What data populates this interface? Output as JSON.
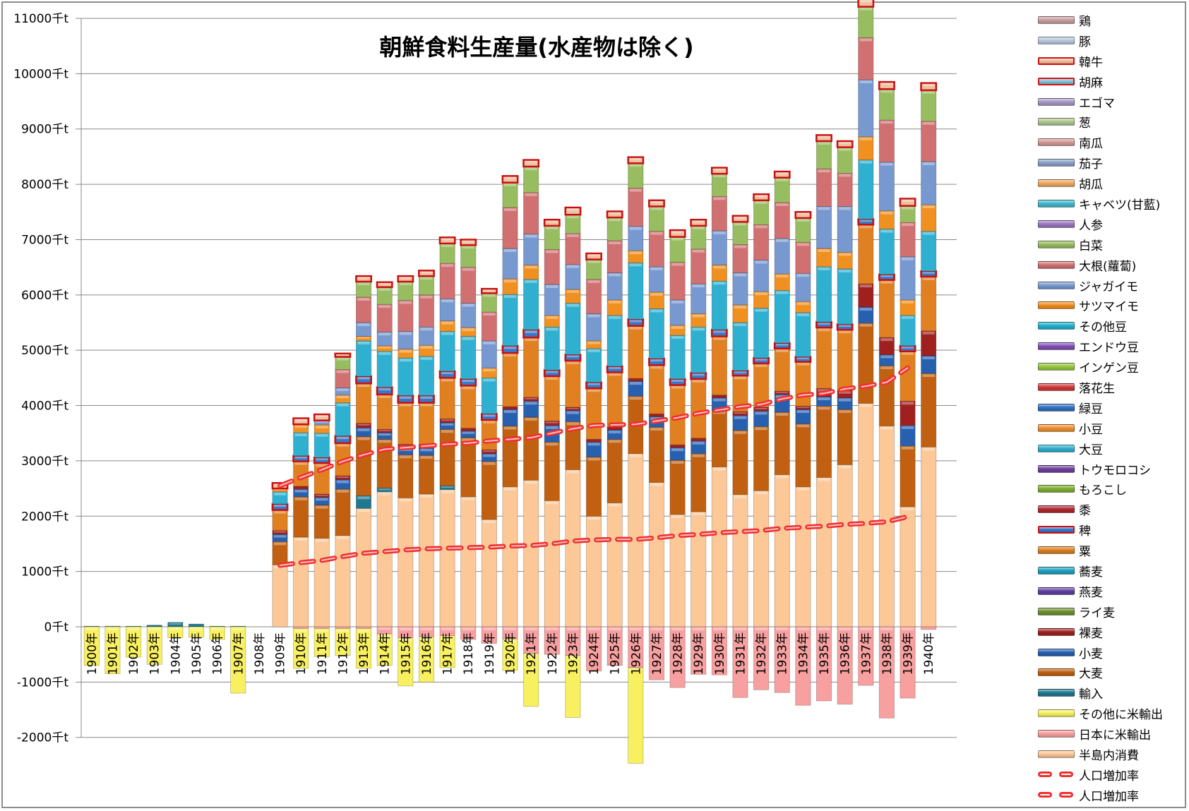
{
  "chart_data": {
    "type": "bar",
    "stacked": true,
    "title": "朝鮮食料生産量(水産物は除く)",
    "y_unit_suffix": "千t",
    "ylim": [
      -2000,
      11000
    ],
    "y_ticks": [
      11000,
      10000,
      9000,
      8000,
      7000,
      6000,
      5000,
      4000,
      3000,
      2000,
      1000,
      0,
      -1000,
      -2000
    ],
    "y_tick_labels": [
      "11000千t",
      "10000千t",
      "9000千t",
      "8000千t",
      "7000千t",
      "6000千t",
      "5000千t",
      "4000千t",
      "3000千t",
      "2000千t",
      "1000千t",
      "0千t",
      "-1000千t",
      "-2000千t"
    ],
    "grid": true,
    "legend_position": "right",
    "categories": [
      "1900年",
      "1901年",
      "1902年",
      "1903年",
      "1904年",
      "1905年",
      "1906年",
      "1907年",
      "1908年",
      "1909年",
      "1910年",
      "1911年",
      "1912年",
      "1913年",
      "1914年",
      "1915年",
      "1916年",
      "1917年",
      "1918年",
      "1919年",
      "1920年",
      "1921年",
      "1922年",
      "1923年",
      "1924年",
      "1925年",
      "1926年",
      "1927年",
      "1928年",
      "1929年",
      "1930年",
      "1931年",
      "1932年",
      "1933年",
      "1934年",
      "1935年",
      "1936年",
      "1937年",
      "1938年",
      "1939年",
      "1940年"
    ],
    "legend": [
      {
        "name": "鶏",
        "color": "#c9a0a0"
      },
      {
        "name": "豚",
        "color": "#b8c8e0"
      },
      {
        "name": "韓牛",
        "color": "#f0c0a0",
        "outline": "red"
      },
      {
        "name": "胡麻",
        "color": "#7fc4d8",
        "outline": "red"
      },
      {
        "name": "エゴマ",
        "color": "#a898c8"
      },
      {
        "name": "葱",
        "color": "#b0c890"
      },
      {
        "name": "南瓜",
        "color": "#d89898"
      },
      {
        "name": "茄子",
        "color": "#8aa0c8"
      },
      {
        "name": "胡瓜",
        "color": "#f0a860"
      },
      {
        "name": "キャベツ(甘藍)",
        "color": "#40b8d0"
      },
      {
        "name": "人参",
        "color": "#9878c0"
      },
      {
        "name": "白菜",
        "color": "#98bc60"
      },
      {
        "name": "大根(蘿蔔)",
        "color": "#d07070"
      },
      {
        "name": "ジャガイモ",
        "color": "#7898d0"
      },
      {
        "name": "サツマイモ",
        "color": "#f09020"
      },
      {
        "name": "その他豆",
        "color": "#20b0d0"
      },
      {
        "name": "エンドウ豆",
        "color": "#8050b8"
      },
      {
        "name": "インゲン豆",
        "color": "#98c840"
      },
      {
        "name": "落花生",
        "color": "#d03838"
      },
      {
        "name": "緑豆",
        "color": "#3070c0"
      },
      {
        "name": "小豆",
        "color": "#f09030"
      },
      {
        "name": "大豆",
        "color": "#30b0d0"
      },
      {
        "name": "トウモロコシ",
        "color": "#7040a0"
      },
      {
        "name": "もろこし",
        "color": "#80b030"
      },
      {
        "name": "黍",
        "color": "#b02830"
      },
      {
        "name": "稗",
        "color": "#3878c8",
        "outline": "red"
      },
      {
        "name": "粟",
        "color": "#e08020"
      },
      {
        "name": "蕎麦",
        "color": "#20a0c0"
      },
      {
        "name": "燕麦",
        "color": "#6040a0"
      },
      {
        "name": "ライ麦",
        "color": "#709030"
      },
      {
        "name": "裸麦",
        "color": "#a02020"
      },
      {
        "name": "小麦",
        "color": "#2860b0"
      },
      {
        "name": "大麦",
        "color": "#c06010"
      },
      {
        "name": "輸入",
        "color": "#207890"
      },
      {
        "name": "その他に米輸出",
        "color": "#f8f060"
      },
      {
        "name": "日本に米輸出",
        "color": "#f8a0a0"
      },
      {
        "name": "半島内消費",
        "color": "#fcc898"
      },
      {
        "name": "人口増加率",
        "line": "dashed",
        "color": "#f03030"
      },
      {
        "name": "人口増加率",
        "line": "dashed",
        "color": "#f03030"
      }
    ],
    "stack_groups": [
      {
        "name": "半島内消費",
        "color": "#fcc898"
      },
      {
        "name": "輸入",
        "color": "#207890"
      },
      {
        "name": "大麦",
        "color": "#c06010"
      },
      {
        "name": "小麦",
        "color": "#2860b0"
      },
      {
        "name": "裸麦",
        "color": "#a02020"
      },
      {
        "name": "粟",
        "color": "#e08020"
      },
      {
        "name": "稗",
        "color": "#3878c8",
        "outline": "red"
      },
      {
        "name": "大豆",
        "color": "#30b0d0"
      },
      {
        "name": "サツマイモ",
        "color": "#f09020"
      },
      {
        "name": "ジャガイモ",
        "color": "#7898d0"
      },
      {
        "name": "大根(蘿蔔)",
        "color": "#d07070"
      },
      {
        "name": "白菜",
        "color": "#98bc60"
      },
      {
        "name": "韓牛",
        "color": "#f0c0a0",
        "outline": "red"
      }
    ],
    "series_values": [
      [
        0,
        0,
        0,
        0,
        0,
        0,
        0,
        0,
        0,
        1120,
        1620,
        1600,
        1650,
        2140,
        2440,
        2330,
        2400,
        2480,
        2350,
        1940,
        2530,
        2650,
        2280,
        2840,
        2000,
        2240,
        3130,
        2610,
        2030,
        2080,
        2890,
        2390,
        2460,
        2750,
        2530,
        2700,
        2930,
        4040,
        3630,
        2170,
        3250
      ],
      [
        10,
        10,
        10,
        30,
        80,
        50,
        10,
        10,
        0,
        0,
        0,
        0,
        0,
        230,
        70,
        0,
        0,
        70,
        0,
        0,
        0,
        0,
        0,
        0,
        0,
        0,
        0,
        0,
        0,
        0,
        0,
        0,
        0,
        0,
        0,
        0,
        0,
        0,
        0,
        0,
        0
      ],
      [
        0,
        0,
        0,
        0,
        0,
        0,
        0,
        0,
        0,
        420,
        730,
        600,
        840,
        1070,
        880,
        780,
        700,
        1020,
        1070,
        1050,
        1100,
        1140,
        1060,
        870,
        1070,
        1150,
        1040,
        1000,
        980,
        1050,
        1020,
        1160,
        1160,
        1130,
        1140,
        1290,
        1000,
        1450,
        1090,
        1100,
        1330
      ],
      [
        0,
        0,
        0,
        0,
        0,
        0,
        0,
        0,
        0,
        130,
        140,
        140,
        170,
        160,
        120,
        120,
        130,
        120,
        120,
        140,
        300,
        290,
        300,
        200,
        270,
        170,
        270,
        190,
        230,
        230,
        230,
        270,
        280,
        320,
        260,
        170,
        210,
        290,
        200,
        370,
        320
      ],
      [
        0,
        0,
        0,
        0,
        0,
        0,
        0,
        0,
        0,
        70,
        50,
        60,
        70,
        80,
        60,
        70,
        70,
        70,
        50,
        70,
        50,
        70,
        80,
        60,
        50,
        50,
        50,
        50,
        50,
        50,
        50,
        70,
        70,
        60,
        60,
        150,
        130,
        420,
        310,
        440,
        450
      ],
      [
        0,
        0,
        0,
        0,
        0,
        0,
        0,
        0,
        0,
        370,
        450,
        560,
        590,
        720,
        630,
        750,
        750,
        740,
        770,
        540,
        970,
        1080,
        810,
        840,
        920,
        990,
        950,
        880,
        1080,
        1070,
        1060,
        650,
        790,
        770,
        800,
        1100,
        1100,
        1070,
        1040,
        900,
        980
      ],
      [
        0,
        0,
        0,
        0,
        0,
        0,
        0,
        0,
        0,
        110,
        100,
        100,
        130,
        130,
        130,
        130,
        130,
        120,
        120,
        110,
        130,
        140,
        110,
        110,
        110,
        110,
        120,
        120,
        110,
        110,
        120,
        90,
        100,
        100,
        90,
        100,
        100,
        100,
        100,
        100,
        100
      ],
      [
        0,
        0,
        0,
        0,
        0,
        0,
        0,
        0,
        0,
        220,
        420,
        440,
        600,
        640,
        650,
        680,
        710,
        720,
        770,
        650,
        930,
        910,
        780,
        930,
        610,
        920,
        1020,
        900,
        790,
        830,
        880,
        870,
        900,
        950,
        800,
        1000,
        1000,
        1070,
        820,
        550,
        720
      ],
      [
        0,
        0,
        0,
        0,
        0,
        0,
        0,
        0,
        0,
        60,
        150,
        150,
        140,
        80,
        100,
        160,
        200,
        190,
        160,
        180,
        280,
        260,
        210,
        250,
        140,
        280,
        220,
        300,
        180,
        240,
        290,
        320,
        300,
        300,
        200,
        330,
        300,
        420,
        330,
        280,
        480
      ],
      [
        0,
        0,
        0,
        0,
        0,
        0,
        0,
        0,
        0,
        0,
        0,
        80,
        130,
        250,
        250,
        320,
        330,
        400,
        440,
        490,
        550,
        560,
        560,
        450,
        490,
        490,
        440,
        460,
        460,
        540,
        620,
        580,
        570,
        640,
        510,
        760,
        830,
        1030,
        880,
        780,
        780
      ],
      [
        0,
        0,
        0,
        0,
        0,
        0,
        0,
        0,
        0,
        0,
        0,
        0,
        330,
        460,
        500,
        560,
        580,
        640,
        650,
        520,
        740,
        750,
        630,
        560,
        620,
        580,
        690,
        640,
        680,
        630,
        620,
        510,
        640,
        650,
        560,
        680,
        600,
        760,
        760,
        620,
        730
      ],
      [
        0,
        0,
        0,
        0,
        0,
        0,
        0,
        0,
        0,
        0,
        0,
        0,
        230,
        280,
        310,
        340,
        340,
        360,
        400,
        340,
        450,
        470,
        430,
        340,
        360,
        420,
        450,
        450,
        460,
        420,
        410,
        410,
        440,
        450,
        440,
        500,
        470,
        560,
        560,
        300,
        560
      ],
      [
        0,
        0,
        0,
        0,
        0,
        0,
        0,
        0,
        0,
        100,
        110,
        110,
        60,
        100,
        90,
        100,
        100,
        110,
        100,
        80,
        120,
        120,
        110,
        130,
        110,
        110,
        110,
        110,
        120,
        110,
        110,
        110,
        110,
        110,
        110,
        110,
        110,
        140,
        130,
        130,
        130
      ]
    ],
    "negative_series": [
      {
        "name": "日本に米輸出",
        "color": "#f8a0a0",
        "values": [
          0,
          0,
          0,
          0,
          0,
          0,
          0,
          0,
          0,
          0,
          -30,
          -30,
          -30,
          -30,
          -130,
          -200,
          -180,
          -160,
          -230,
          -300,
          -220,
          -480,
          -500,
          -520,
          -800,
          -700,
          -740,
          -960,
          -1100,
          -860,
          -870,
          -1280,
          -1140,
          -1190,
          -1420,
          -1340,
          -1400,
          -1060,
          -1650,
          -1290,
          -50
        ]
      },
      {
        "name": "その他に米輸出",
        "color": "#f8f060",
        "values": [
          -700,
          -850,
          -550,
          -680,
          -200,
          -190,
          -230,
          -1200,
          0,
          0,
          -720,
          -510,
          -490,
          -720,
          -570,
          -870,
          -820,
          -580,
          0,
          0,
          -570,
          -960,
          0,
          -1120,
          0,
          0,
          -1730,
          0,
          0,
          0,
          0,
          0,
          0,
          0,
          0,
          0,
          0,
          0,
          0,
          0,
          0
        ]
      }
    ],
    "lines": [
      {
        "name": "人口増加率",
        "color": "#f03030",
        "x_from": "1909年",
        "values": [
          2550,
          2700,
          2840,
          2990,
          3110,
          3210,
          3240,
          3270,
          3300,
          3320,
          3360,
          3390,
          3420,
          3500,
          3580,
          3640,
          3650,
          3660,
          3720,
          3780,
          3860,
          3920,
          3980,
          4020,
          4120,
          4190,
          4220,
          4300,
          4350,
          4420,
          4680
        ]
      },
      {
        "name": "人口増加率",
        "color": "#f03030",
        "x_from": "1909年",
        "values": [
          1110,
          1160,
          1200,
          1270,
          1330,
          1360,
          1390,
          1410,
          1420,
          1430,
          1440,
          1460,
          1470,
          1500,
          1550,
          1570,
          1580,
          1580,
          1610,
          1650,
          1670,
          1700,
          1720,
          1740,
          1780,
          1800,
          1820,
          1850,
          1870,
          1900,
          1990
        ]
      }
    ]
  }
}
